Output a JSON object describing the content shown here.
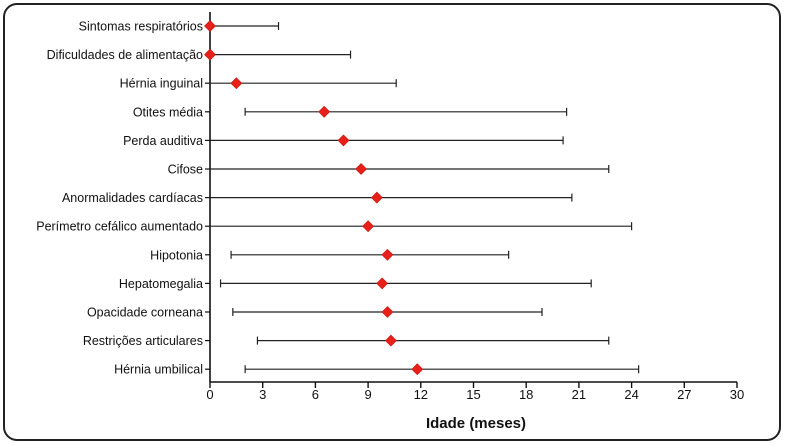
{
  "chart_data": {
    "type": "scatter",
    "title": "",
    "xlabel": "Idade (meses)",
    "ylabel": "",
    "xlim": [
      0,
      30
    ],
    "xticks": [
      0,
      3,
      6,
      9,
      12,
      15,
      18,
      21,
      24,
      27,
      30
    ],
    "grid": false,
    "legend": "none",
    "marker_color": "#e8201a",
    "errorbar_color": "#222222",
    "categories": [
      "Sintomas respiratórios",
      "Dificuldades de alimentação",
      "Hérnia inguinal",
      "Otites média",
      "Perda auditiva",
      "Cifose",
      "Anormalidades cardíacas",
      "Perímetro cefálico aumentado",
      "Hipotonia",
      "Hepatomegalia",
      "Opacidade corneana",
      "Restrições articulares",
      "Hérnia umbilical"
    ],
    "values": [
      0,
      0,
      1.5,
      6.5,
      7.6,
      8.6,
      9.5,
      9.0,
      10.1,
      9.8,
      10.1,
      10.3,
      11.8
    ],
    "lower": [
      0,
      0,
      0,
      2.0,
      0,
      0,
      0,
      0,
      1.2,
      0.6,
      1.3,
      2.7,
      2.0
    ],
    "upper": [
      3.9,
      8.0,
      10.6,
      20.3,
      20.1,
      22.7,
      20.6,
      24.0,
      17.0,
      21.7,
      18.9,
      22.7,
      24.4
    ]
  }
}
